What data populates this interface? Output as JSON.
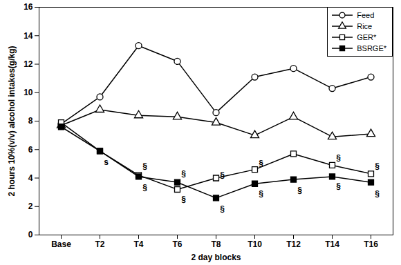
{
  "chart_data": {
    "type": "line",
    "x_label": "2 day blocks",
    "y_label": "2 hours 10%(v/v) alcohol intakes(g/kg)",
    "categories": [
      "Base",
      "T2",
      "T4",
      "T6",
      "T8",
      "T10",
      "T12",
      "T14",
      "T16"
    ],
    "series": [
      {
        "name": "Feed",
        "color": "#000000",
        "marker": "circle-open",
        "values": [
          7.8,
          9.7,
          13.3,
          12.2,
          8.6,
          11.1,
          11.7,
          10.3,
          11.1
        ]
      },
      {
        "name": "Rice",
        "color": "#000000",
        "marker": "triangle-open",
        "values": [
          7.7,
          8.8,
          8.4,
          8.3,
          7.9,
          7.0,
          8.3,
          6.9,
          7.1
        ]
      },
      {
        "name": "GER*",
        "color": "#000000",
        "marker": "square-open",
        "values": [
          7.9,
          5.9,
          4.2,
          3.2,
          4.0,
          4.6,
          5.7,
          4.9,
          4.3
        ]
      },
      {
        "name": "BSRGE*",
        "color": "#000000",
        "marker": "square",
        "values": [
          7.6,
          5.9,
          4.1,
          3.7,
          2.6,
          3.6,
          3.9,
          4.1,
          3.7
        ]
      }
    ],
    "annotations": [
      {
        "x": "T2",
        "y": 5.1,
        "text": "s"
      },
      {
        "x": "T4",
        "y": 4.8,
        "text": "§"
      },
      {
        "x": "T4",
        "y": 3.3,
        "text": "§"
      },
      {
        "x": "T6",
        "y": 4.3,
        "text": "§"
      },
      {
        "x": "T6",
        "y": 2.5,
        "text": "§"
      },
      {
        "x": "T8",
        "y": 4.2,
        "text": "§"
      },
      {
        "x": "T8",
        "y": 1.8,
        "text": "§"
      },
      {
        "x": "T10",
        "y": 5.0,
        "text": "§"
      },
      {
        "x": "T10",
        "y": 2.9,
        "text": "§"
      },
      {
        "x": "T12",
        "y": 3.1,
        "text": "§"
      },
      {
        "x": "T14",
        "y": 5.4,
        "text": "§"
      },
      {
        "x": "T14",
        "y": 3.4,
        "text": "§"
      },
      {
        "x": "T16",
        "y": 4.8,
        "text": "§"
      },
      {
        "x": "T16",
        "y": 2.9,
        "text": "§"
      }
    ],
    "ylim": [
      0,
      16
    ],
    "yticks": [
      0,
      2,
      4,
      6,
      8,
      10,
      12,
      14,
      16
    ],
    "grid": false,
    "legend": "upper right"
  }
}
